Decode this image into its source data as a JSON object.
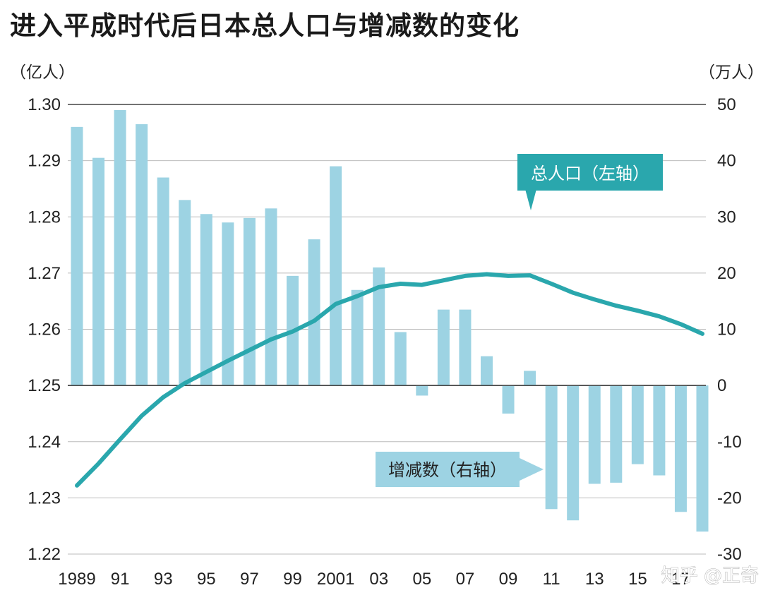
{
  "chart_data": {
    "type": "bar+line",
    "title": "进入平成时代后日本总人口与增减数的变化",
    "left_unit": "（亿人）",
    "right_unit": "（万人）",
    "left_ylim": [
      1.22,
      1.3
    ],
    "right_ylim": [
      -30,
      50
    ],
    "left_ticks": [
      "1.30",
      "1.29",
      "1.28",
      "1.27",
      "1.26",
      "1.25",
      "1.24",
      "1.23",
      "1.22"
    ],
    "right_ticks": [
      "50",
      "40",
      "30",
      "20",
      "10",
      "0",
      "-10",
      "-20",
      "-30"
    ],
    "x_labels": [
      "1989",
      "91",
      "93",
      "95",
      "97",
      "99",
      "2001",
      "03",
      "05",
      "07",
      "09",
      "11",
      "13",
      "15",
      "17"
    ],
    "years": [
      1989,
      1990,
      1991,
      1992,
      1993,
      1994,
      1995,
      1996,
      1997,
      1998,
      1999,
      2000,
      2001,
      2002,
      2003,
      2004,
      2005,
      2006,
      2007,
      2008,
      2009,
      2010,
      2011,
      2012,
      2013,
      2014,
      2015,
      2016,
      2017,
      2018
    ],
    "series": [
      {
        "name": "增减数（右轴）",
        "axis": "right",
        "kind": "bar",
        "color": "#9dd3e3",
        "values": [
          46,
          40.5,
          49,
          46.5,
          37,
          33,
          30.5,
          29,
          29.8,
          31.5,
          19.5,
          26,
          39,
          17,
          21,
          9.5,
          -1.8,
          13.5,
          13.5,
          5.2,
          -5,
          2.6,
          -22,
          -24,
          -17.5,
          -17.3,
          -14,
          -16,
          -22.5,
          -26
        ]
      },
      {
        "name": "总人口（左轴）",
        "axis": "left",
        "kind": "line",
        "color": "#2aa7ad",
        "values": [
          1.2322,
          1.2361,
          1.2404,
          1.2446,
          1.2479,
          1.2504,
          1.2524,
          1.2544,
          1.2563,
          1.2582,
          1.2596,
          1.2615,
          1.2645,
          1.2659,
          1.2675,
          1.2681,
          1.2679,
          1.2687,
          1.2695,
          1.2698,
          1.2695,
          1.2696,
          1.2681,
          1.2665,
          1.2653,
          1.2642,
          1.2633,
          1.2623,
          1.2609,
          1.2592
        ]
      }
    ],
    "annotations": [
      "总人口（左轴）",
      "增减数（右轴）"
    ],
    "colors": {
      "bar": "#9dd3e3",
      "line": "#2aa7ad",
      "callout": "#2aa7ad",
      "callout_text": "#ffffff",
      "callout2_bg": "#9dd3e3",
      "callout2_text": "#222222",
      "grid": "#bbbbbb"
    }
  },
  "watermark": "知乎 @正奇"
}
